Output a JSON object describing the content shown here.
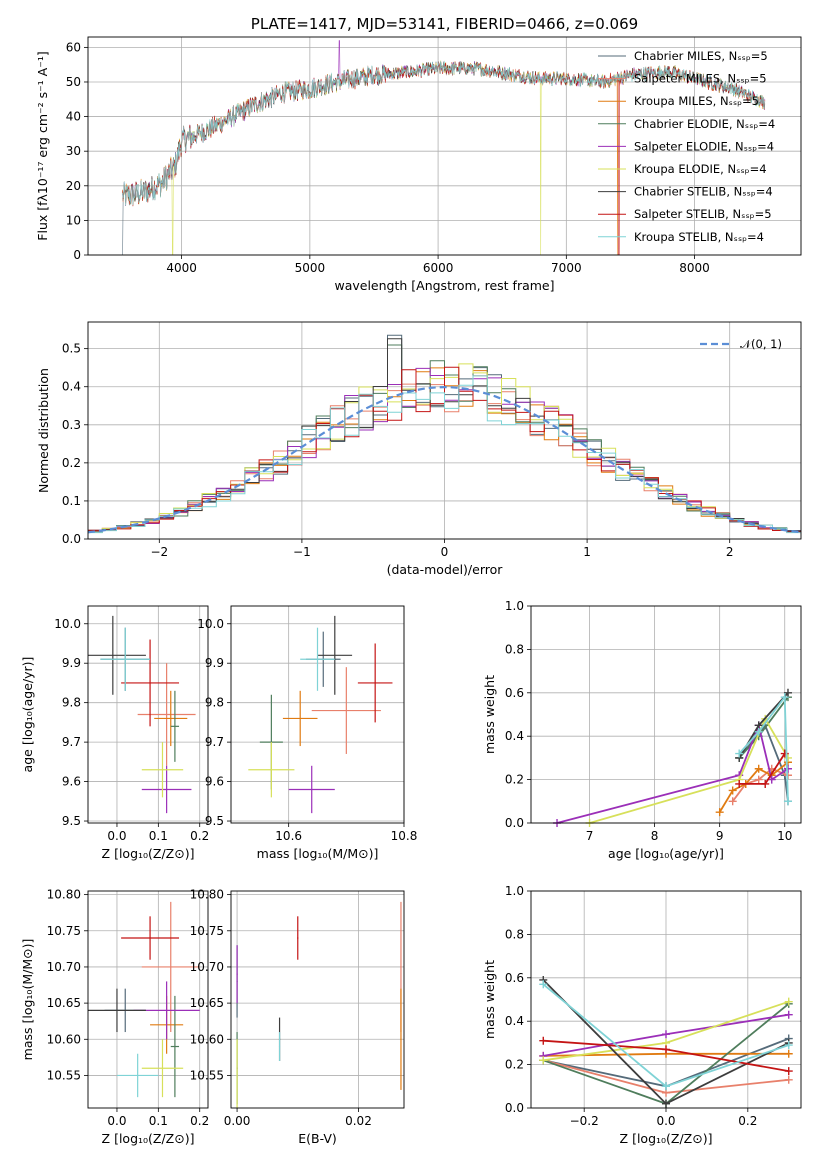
{
  "colors": [
    "#556b7a",
    "#e8806b",
    "#e07b12",
    "#4f7d5c",
    "#9b2fb8",
    "#d7e05a",
    "#3d3d3d",
    "#c41414",
    "#7fd3d6"
  ],
  "chart_data": [
    {
      "type": "line",
      "title": "PLATE=1417, MJD=53141, FIBERID=0466, z=0.069",
      "xlabel": "wavelength [Angstrom, rest frame]",
      "ylabel": "Flux [fλ10⁻¹⁷ erg cm⁻² s⁻¹ A⁻¹]",
      "xlim": [
        3270,
        8830
      ],
      "ylim": [
        0,
        63
      ],
      "xticks": [
        4000,
        5000,
        6000,
        7000,
        8000
      ],
      "yticks": [
        0,
        10,
        20,
        30,
        40,
        50,
        60
      ],
      "legend_position": "top-right",
      "series_names": [
        "Chabrier MILES, Nₛₛₚ=5",
        "Salpeter MILES, Nₛₛₚ=5",
        "Kroupa MILES, Nₛₛₚ=5",
        "Chabrier ELODIE, Nₛₛₚ=4",
        "Salpeter ELODIE, Nₛₛₚ=4",
        "Kroupa ELODIE, Nₛₛₚ=4",
        "Chabrier STELIB, Nₛₛₚ=4",
        "Salpeter STELIB, Nₛₛₚ=5",
        "Kroupa STELIB, Nₛₛₚ=4"
      ],
      "continuum": [
        [
          3540,
          17
        ],
        [
          3700,
          18
        ],
        [
          3850,
          21
        ],
        [
          3950,
          26
        ],
        [
          4000,
          33
        ],
        [
          4200,
          36
        ],
        [
          4400,
          40
        ],
        [
          4600,
          44
        ],
        [
          4800,
          47
        ],
        [
          5000,
          48
        ],
        [
          5200,
          50
        ],
        [
          5500,
          52
        ],
        [
          5800,
          53
        ],
        [
          6000,
          54
        ],
        [
          6300,
          54
        ],
        [
          6600,
          52
        ],
        [
          6800,
          51
        ],
        [
          7000,
          51
        ],
        [
          7300,
          50
        ],
        [
          7500,
          52
        ],
        [
          7800,
          53
        ],
        [
          8000,
          51
        ],
        [
          8300,
          48
        ],
        [
          8550,
          44
        ]
      ]
    },
    {
      "type": "step",
      "xlabel": "(data-model)/error",
      "ylabel": "Normed distribution",
      "xlim": [
        -2.5,
        2.5
      ],
      "ylim": [
        0,
        0.57
      ],
      "xticks": [
        -2,
        -1,
        0,
        1,
        2
      ],
      "yticks": [
        0.0,
        0.1,
        0.2,
        0.3,
        0.4,
        0.5
      ],
      "grid": true,
      "legend": "𝒩(0, 1)"
    },
    {
      "type": "errorbar",
      "xlabel": "Z [log₁₀(Z/Z⊙)]",
      "ylabel": "age  [log₁₀(age/yr)]",
      "xlim": [
        -0.07,
        0.22
      ],
      "ylim": [
        9.495,
        10.045
      ],
      "xticks": [
        0.0,
        0.1,
        0.2
      ],
      "yticks": [
        9.5,
        9.6,
        9.7,
        9.8,
        9.9,
        10.0
      ],
      "points": [
        [
          0.02,
          9.91,
          0.06,
          0.08
        ],
        [
          0.12,
          9.77,
          0.07,
          0.13
        ],
        [
          0.13,
          9.76,
          0.04,
          0.07
        ],
        [
          0.14,
          9.74,
          0.01,
          0.09
        ],
        [
          0.12,
          9.58,
          0.06,
          0.06
        ],
        [
          0.11,
          9.63,
          0.05,
          0.07
        ],
        [
          -0.01,
          9.92,
          0.08,
          0.1
        ],
        [
          0.08,
          9.85,
          0.07,
          0.11
        ],
        [
          0.02,
          9.91,
          0.06,
          0.08
        ]
      ]
    },
    {
      "type": "errorbar",
      "xlabel": "mass [log₁₀(M/M⊙)]",
      "ylabel": "",
      "xlim": [
        10.5,
        10.8
      ],
      "ylim": [
        9.495,
        10.045
      ],
      "xticks": [
        10.6,
        10.8
      ],
      "yticks": [
        9.5,
        9.6,
        9.7,
        9.8,
        9.9,
        10.0
      ],
      "points": [
        [
          10.66,
          9.91,
          0.03,
          0.07
        ],
        [
          10.7,
          9.78,
          0.06,
          0.11
        ],
        [
          10.62,
          9.76,
          0.03,
          0.07
        ],
        [
          10.57,
          9.7,
          0.02,
          0.12
        ],
        [
          10.64,
          9.58,
          0.04,
          0.06
        ],
        [
          10.57,
          9.63,
          0.04,
          0.07
        ],
        [
          10.68,
          9.92,
          0.03,
          0.1
        ],
        [
          10.75,
          9.85,
          0.03,
          0.1
        ],
        [
          10.65,
          9.91,
          0.03,
          0.08
        ]
      ]
    },
    {
      "type": "line",
      "xlabel": "age  [log₁₀(age/yr)]",
      "ylabel": "mass weight",
      "xlim": [
        6.1,
        10.25
      ],
      "ylim": [
        0,
        1
      ],
      "xticks": [
        7,
        8,
        9,
        10
      ],
      "yticks": [
        0.0,
        0.2,
        0.4,
        0.6,
        0.8,
        1.0
      ],
      "grid": true,
      "series": [
        {
          "values": [
            [
              9.3,
              0.3
            ],
            [
              9.7,
              0.45
            ],
            [
              10.0,
              0.22
            ],
            [
              10.05,
              0.1
            ]
          ]
        },
        {
          "values": [
            [
              9.2,
              0.1
            ],
            [
              9.4,
              0.18
            ],
            [
              9.6,
              0.2
            ],
            [
              9.8,
              0.25
            ],
            [
              10.05,
              0.22
            ]
          ]
        },
        {
          "values": [
            [
              9.0,
              0.05
            ],
            [
              9.2,
              0.15
            ],
            [
              9.4,
              0.18
            ],
            [
              9.6,
              0.25
            ],
            [
              9.8,
              0.22
            ],
            [
              10.05,
              0.28
            ]
          ]
        },
        {
          "values": [
            [
              9.3,
              0.3
            ],
            [
              9.6,
              0.4
            ],
            [
              10.05,
              0.58
            ]
          ]
        },
        {
          "values": [
            [
              6.5,
              0.0
            ],
            [
              9.3,
              0.22
            ],
            [
              9.6,
              0.45
            ],
            [
              9.8,
              0.2
            ],
            [
              10.05,
              0.25
            ]
          ]
        },
        {
          "values": [
            [
              7.0,
              0.0
            ],
            [
              9.3,
              0.2
            ],
            [
              9.7,
              0.48
            ],
            [
              10.05,
              0.3
            ]
          ]
        },
        {
          "values": [
            [
              9.3,
              0.3
            ],
            [
              9.6,
              0.45
            ],
            [
              10.05,
              0.6
            ]
          ]
        },
        {
          "values": [
            [
              9.3,
              0.18
            ],
            [
              9.7,
              0.18
            ],
            [
              10.0,
              0.32
            ]
          ]
        },
        {
          "values": [
            [
              9.3,
              0.32
            ],
            [
              9.6,
              0.42
            ],
            [
              10.0,
              0.58
            ],
            [
              10.05,
              0.1
            ]
          ]
        }
      ]
    },
    {
      "type": "errorbar",
      "xlabel": "Z [log₁₀(Z/Z⊙)]",
      "ylabel": "mass [log₁₀(M/M⊙)]",
      "xlim": [
        -0.07,
        0.22
      ],
      "ylim": [
        10.505,
        10.805
      ],
      "xticks": [
        0.0,
        0.1,
        0.2
      ],
      "yticks": [
        10.55,
        10.6,
        10.65,
        10.7,
        10.75,
        10.8
      ],
      "points": [
        [
          0.02,
          10.64,
          0.05,
          0.03
        ],
        [
          0.13,
          10.7,
          0.07,
          0.09
        ],
        [
          0.12,
          10.62,
          0.04,
          0.04
        ],
        [
          0.14,
          10.59,
          0.01,
          0.07
        ],
        [
          0.12,
          10.64,
          0.08,
          0.04
        ],
        [
          0.11,
          10.56,
          0.05,
          0.04
        ],
        [
          0.0,
          10.64,
          0.07,
          0.03
        ],
        [
          0.08,
          10.74,
          0.07,
          0.03
        ],
        [
          0.05,
          10.55,
          0.05,
          0.03
        ]
      ]
    },
    {
      "type": "errorbar",
      "xlabel": "E(B-V)",
      "ylabel": "",
      "xlim": [
        -0.001,
        0.0275
      ],
      "ylim": [
        10.505,
        10.805
      ],
      "xticks": [
        0.0,
        0.02
      ],
      "yticks": [
        10.55,
        10.6,
        10.65,
        10.7,
        10.75,
        10.8
      ],
      "points": [
        [
          0.0,
          10.68,
          0.0001,
          0.05
        ],
        [
          0.027,
          10.7,
          0.0001,
          0.09
        ],
        [
          0.027,
          10.6,
          0.0001,
          0.07
        ],
        [
          0.0,
          10.56,
          0.0001,
          0.05
        ],
        [
          0.0,
          10.69,
          0.0001,
          0.04
        ],
        [
          0.0,
          10.55,
          0.0001,
          0.05
        ],
        [
          0.007,
          10.6,
          0.0001,
          0.03
        ],
        [
          0.01,
          10.74,
          0.0001,
          0.03
        ],
        [
          0.007,
          10.59,
          0.0001,
          0.02
        ]
      ]
    },
    {
      "type": "line",
      "xlabel": "Z [log₁₀(Z/Z⊙)]",
      "ylabel": "mass weight",
      "xlim": [
        -0.33,
        0.33
      ],
      "ylim": [
        0,
        1
      ],
      "xticks": [
        -0.2,
        0.0,
        0.2
      ],
      "yticks": [
        0.0,
        0.2,
        0.4,
        0.6,
        0.8,
        1.0
      ],
      "grid": true,
      "series": [
        {
          "values": [
            [
              -0.3,
              0.22
            ],
            [
              0.0,
              0.1
            ],
            [
              0.3,
              0.32
            ]
          ]
        },
        {
          "values": [
            [
              -0.3,
              0.22
            ],
            [
              0.0,
              0.07
            ],
            [
              0.3,
              0.13
            ]
          ]
        },
        {
          "values": [
            [
              -0.3,
              0.24
            ],
            [
              0.0,
              0.25
            ],
            [
              0.3,
              0.25
            ]
          ]
        },
        {
          "values": [
            [
              -0.3,
              0.22
            ],
            [
              0.0,
              0.02
            ],
            [
              0.3,
              0.48
            ]
          ]
        },
        {
          "values": [
            [
              -0.3,
              0.24
            ],
            [
              0.0,
              0.34
            ],
            [
              0.3,
              0.43
            ]
          ]
        },
        {
          "values": [
            [
              -0.3,
              0.22
            ],
            [
              0.0,
              0.3
            ],
            [
              0.3,
              0.49
            ]
          ]
        },
        {
          "values": [
            [
              -0.3,
              0.59
            ],
            [
              0.0,
              0.02
            ],
            [
              0.3,
              0.3
            ]
          ]
        },
        {
          "values": [
            [
              -0.3,
              0.31
            ],
            [
              0.0,
              0.27
            ],
            [
              0.3,
              0.17
            ]
          ]
        },
        {
          "values": [
            [
              -0.3,
              0.57
            ],
            [
              0.0,
              0.1
            ],
            [
              0.3,
              0.29
            ]
          ]
        }
      ]
    }
  ]
}
